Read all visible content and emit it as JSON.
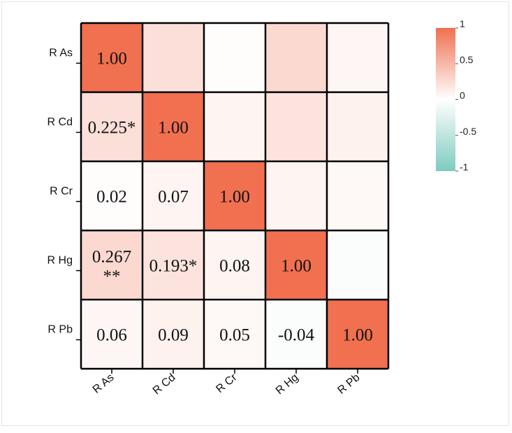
{
  "chart_data": {
    "type": "heatmap",
    "rows": [
      "R As",
      "R Cd",
      "R Cr",
      "R Hg",
      "R Pb"
    ],
    "columns": [
      "R As",
      "R Cd",
      "R Cr",
      "R Hg",
      "R Pb"
    ],
    "values": [
      [
        1.0,
        0.225,
        0.02,
        0.267,
        0.06
      ],
      [
        0.225,
        1.0,
        0.07,
        0.193,
        0.09
      ],
      [
        0.02,
        0.07,
        1.0,
        0.08,
        0.05
      ],
      [
        0.267,
        0.193,
        0.08,
        1.0,
        -0.04
      ],
      [
        0.06,
        0.09,
        0.05,
        -0.04,
        1.0
      ]
    ],
    "cell_labels": [
      [
        "1.00",
        "",
        "",
        "",
        ""
      ],
      [
        "0.225*",
        "1.00",
        "",
        "",
        ""
      ],
      [
        "0.02",
        "0.07",
        "1.00",
        "",
        ""
      ],
      [
        "0.267\n**",
        "0.193*",
        "0.08",
        "1.00",
        ""
      ],
      [
        "0.06",
        "0.09",
        "0.05",
        "-0.04",
        "1.00"
      ]
    ],
    "colorbar": {
      "ticks": [
        "1",
        "0.5",
        "0",
        "-0.5",
        "-1"
      ],
      "range": [
        -1,
        1
      ],
      "colors": {
        "positive": "#f07050",
        "zero": "#ffffff",
        "negative": "#7ecbbf"
      }
    },
    "title": "",
    "xlabel": "",
    "ylabel": ""
  }
}
